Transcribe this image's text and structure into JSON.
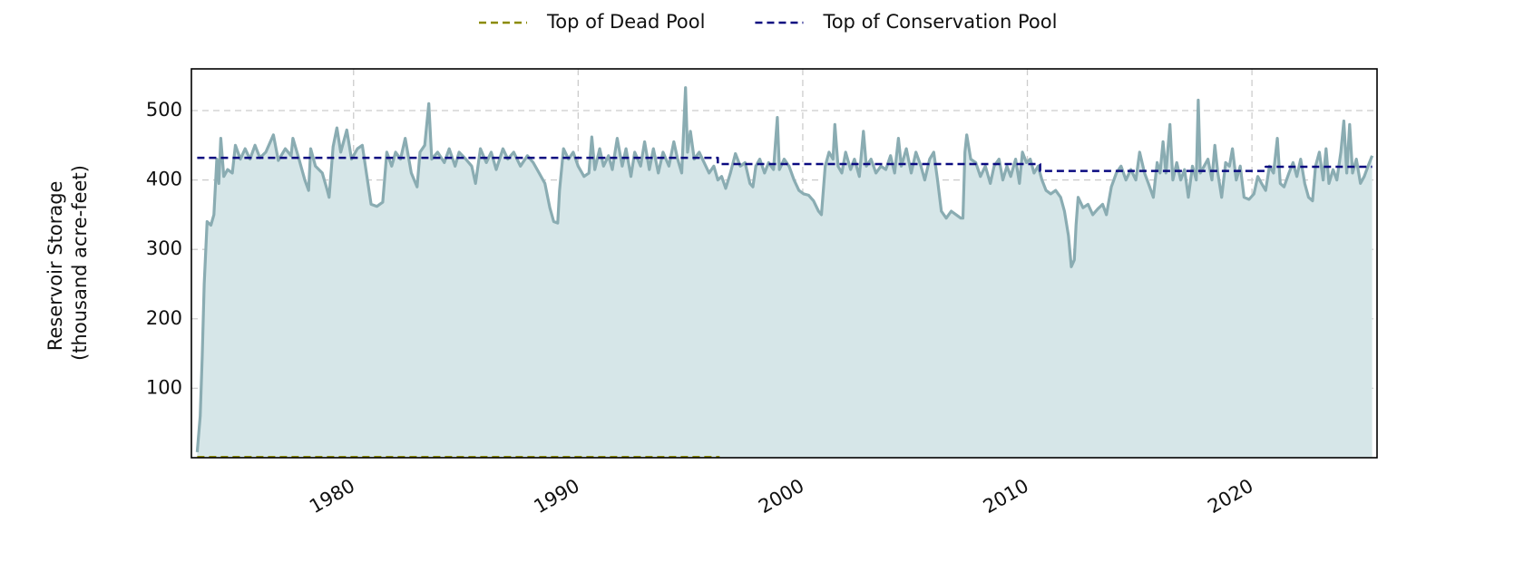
{
  "chart_data": {
    "type": "line",
    "ylabel": [
      "Reservoir Storage",
      "(thousand acre-feet)"
    ],
    "xlim": [
      1972.78,
      2025.57
    ],
    "xticks": [
      1980,
      1990,
      2000,
      2010,
      2020
    ],
    "ylim": [
      0,
      560
    ],
    "yticks": [
      100,
      200,
      300,
      400,
      500
    ],
    "grid": true,
    "legend": "top",
    "series": [
      {
        "color": "#8aacb2",
        "fill": "#d6e6e8",
        "x": [
          1973.04,
          1973.17,
          1973.26,
          1973.35,
          1973.48,
          1973.65,
          1973.78,
          1973.91,
          1974.0,
          1974.09,
          1974.22,
          1974.39,
          1974.6,
          1974.74,
          1974.96,
          1975.17,
          1975.39,
          1975.61,
          1975.83,
          1976.09,
          1976.43,
          1976.65,
          1976.96,
          1977.22,
          1977.3,
          1977.57,
          1977.83,
          1978.0,
          1978.09,
          1978.3,
          1978.61,
          1978.83,
          1978.91,
          1979.09,
          1979.26,
          1979.43,
          1979.7,
          1979.91,
          1980.17,
          1980.39,
          1980.57,
          1980.78,
          1981.04,
          1981.3,
          1981.48,
          1981.7,
          1981.87,
          1982.09,
          1982.3,
          1982.57,
          1982.83,
          1982.96,
          1983.17,
          1983.35,
          1983.48,
          1983.74,
          1984.04,
          1984.26,
          1984.52,
          1984.7,
          1985.0,
          1985.26,
          1985.43,
          1985.65,
          1985.91,
          1986.13,
          1986.35,
          1986.65,
          1986.87,
          1987.13,
          1987.43,
          1987.74,
          1988.0,
          1988.26,
          1988.52,
          1988.74,
          1988.91,
          1989.09,
          1989.17,
          1989.35,
          1989.57,
          1989.78,
          1990.0,
          1990.26,
          1990.48,
          1990.61,
          1990.74,
          1990.96,
          1991.13,
          1991.35,
          1991.52,
          1991.74,
          1991.96,
          1992.13,
          1992.35,
          1992.52,
          1992.78,
          1992.96,
          1993.17,
          1993.35,
          1993.57,
          1993.78,
          1994.04,
          1994.26,
          1994.43,
          1994.61,
          1994.78,
          1994.87,
          1995.0,
          1995.17,
          1995.39,
          1995.61,
          1995.83,
          1996.04,
          1996.22,
          1996.39,
          1996.57,
          1996.78,
          1997.0,
          1997.22,
          1997.43,
          1997.65,
          1997.78,
          1997.91,
          1998.09,
          1998.3,
          1998.48,
          1998.7,
          1998.87,
          1998.96,
          1999.17,
          1999.39,
          1999.61,
          1999.83,
          2000.04,
          2000.26,
          2000.48,
          2000.7,
          2000.83,
          2001.0,
          2001.17,
          2001.35,
          2001.43,
          2001.57,
          2001.74,
          2001.91,
          2002.13,
          2002.3,
          2002.52,
          2002.7,
          2002.83,
          2003.04,
          2003.26,
          2003.48,
          2003.7,
          2003.91,
          2004.09,
          2004.26,
          2004.39,
          2004.61,
          2004.83,
          2005.04,
          2005.26,
          2005.43,
          2005.65,
          2005.83,
          2006.0,
          2006.17,
          2006.39,
          2006.61,
          2006.83,
          2007.04,
          2007.13,
          2007.22,
          2007.3,
          2007.48,
          2007.7,
          2007.91,
          2008.13,
          2008.35,
          2008.52,
          2008.74,
          2008.91,
          2009.09,
          2009.26,
          2009.48,
          2009.65,
          2009.78,
          2009.96,
          2010.13,
          2010.3,
          2010.48,
          2010.65,
          2010.83,
          2011.04,
          2011.26,
          2011.48,
          2011.65,
          2011.83,
          2011.96,
          2012.09,
          2012.17,
          2012.26,
          2012.48,
          2012.7,
          2012.91,
          2013.13,
          2013.35,
          2013.52,
          2013.74,
          2013.96,
          2014.17,
          2014.39,
          2014.61,
          2014.83,
          2015.0,
          2015.22,
          2015.39,
          2015.61,
          2015.78,
          2015.91,
          2016.04,
          2016.17,
          2016.35,
          2016.48,
          2016.65,
          2016.83,
          2017.0,
          2017.17,
          2017.35,
          2017.52,
          2017.61,
          2017.7,
          2017.87,
          2018.04,
          2018.22,
          2018.35,
          2018.48,
          2018.65,
          2018.83,
          2019.0,
          2019.13,
          2019.3,
          2019.48,
          2019.65,
          2019.87,
          2020.09,
          2020.26,
          2020.43,
          2020.61,
          2020.78,
          2020.96,
          2021.13,
          2021.26,
          2021.43,
          2021.65,
          2021.83,
          2022.0,
          2022.17,
          2022.35,
          2022.52,
          2022.7,
          2022.83,
          2023.0,
          2023.17,
          2023.3,
          2023.43,
          2023.61,
          2023.78,
          2023.96,
          2024.09,
          2024.22,
          2024.35,
          2024.48,
          2024.65,
          2024.83,
          2025.0,
          2025.17,
          2025.35
        ],
        "values": [
          8,
          60,
          145,
          250,
          340,
          335,
          350,
          430,
          395,
          460,
          405,
          415,
          410,
          450,
          430,
          445,
          430,
          450,
          432,
          440,
          465,
          428,
          445,
          435,
          460,
          430,
          400,
          385,
          445,
          420,
          410,
          385,
          375,
          448,
          475,
          440,
          472,
          430,
          445,
          450,
          410,
          365,
          362,
          368,
          440,
          420,
          440,
          430,
          460,
          410,
          390,
          440,
          450,
          510,
          430,
          440,
          425,
          445,
          420,
          440,
          430,
          420,
          395,
          445,
          425,
          440,
          415,
          445,
          430,
          440,
          420,
          435,
          425,
          410,
          395,
          360,
          340,
          338,
          385,
          445,
          430,
          440,
          420,
          405,
          410,
          462,
          415,
          445,
          420,
          435,
          415,
          460,
          420,
          445,
          405,
          440,
          420,
          455,
          415,
          445,
          410,
          440,
          420,
          455,
          430,
          410,
          533,
          440,
          470,
          430,
          440,
          425,
          410,
          420,
          400,
          405,
          388,
          410,
          438,
          420,
          425,
          395,
          390,
          420,
          430,
          410,
          425,
          415,
          490,
          415,
          430,
          420,
          400,
          385,
          380,
          378,
          370,
          355,
          350,
          420,
          440,
          430,
          480,
          420,
          410,
          440,
          415,
          430,
          405,
          470,
          420,
          430,
          410,
          420,
          415,
          435,
          410,
          460,
          420,
          445,
          410,
          440,
          420,
          400,
          430,
          440,
          400,
          355,
          345,
          355,
          350,
          345,
          345,
          440,
          465,
          430,
          425,
          405,
          420,
          395,
          420,
          430,
          400,
          420,
          405,
          430,
          395,
          440,
          425,
          430,
          410,
          420,
          400,
          385,
          380,
          385,
          375,
          355,
          320,
          275,
          285,
          335,
          375,
          360,
          365,
          350,
          358,
          365,
          350,
          390,
          410,
          420,
          400,
          415,
          400,
          440,
          410,
          395,
          375,
          425,
          410,
          455,
          410,
          480,
          400,
          425,
          400,
          415,
          375,
          420,
          400,
          515,
          410,
          420,
          430,
          400,
          450,
          410,
          375,
          425,
          420,
          445,
          400,
          420,
          375,
          372,
          380,
          405,
          395,
          385,
          420,
          410,
          460,
          395,
          390,
          410,
          425,
          405,
          430,
          395,
          375,
          370,
          420,
          440,
          400,
          445,
          395,
          415,
          400,
          440,
          485,
          410,
          480,
          410,
          430,
          395,
          405,
          420,
          435
        ]
      },
      {
        "name": "Top of Dead Pool",
        "color": "#8b8b00",
        "dashed": true,
        "x": [
          1973.04,
          1996.3
        ],
        "values": [
          1,
          1
        ]
      },
      {
        "name": "Top of Conservation Pool",
        "color": "#0a0a80",
        "dashed": true,
        "x": [
          1973.04,
          1996.22,
          1996.22,
          2010.57,
          2010.57,
          2020.61,
          2020.61,
          2025.35
        ],
        "values": [
          432,
          432,
          423,
          423,
          413,
          413,
          419,
          419
        ]
      }
    ]
  }
}
